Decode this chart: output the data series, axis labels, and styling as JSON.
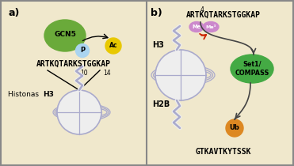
{
  "bg_color": "#f0e8cc",
  "border_color": "#888888",
  "panel_a": {
    "label": "a)",
    "gcn5_color": "#6aaa3a",
    "gcn5_text": "GCN5",
    "p_color": "#aad4f0",
    "p_text": "P",
    "ac_color": "#e8c800",
    "ac_text": "Ac",
    "sequence": "ARTKQTARKSTGGKAP",
    "pos10": "10",
    "pos14": "14",
    "histone_label_normal": "Histonas ",
    "histone_label_bold": "H3",
    "nucleosome_color": "#eeeeee",
    "nucleosome_border": "#aaaacc"
  },
  "panel_b": {
    "label": "b)",
    "sequence": "ARTKQTARKSTGGKAP",
    "pos4": "4",
    "me_color": "#cc88cc",
    "me1_text": "Me",
    "me3_text": "Me³",
    "arrow_color": "#cc2200",
    "h3_label": "H3",
    "h2b_label": "H2B",
    "set1_color": "#44aa44",
    "set1_text": "Set1/\nCOMPASS",
    "ub_color": "#dd8822",
    "ub_text": "Ub",
    "h2b_seq": "GTKAVTKYTSSK",
    "nucleosome_color": "#eeeeee",
    "nucleosome_border": "#aaaacc",
    "curve_color": "#444444"
  }
}
